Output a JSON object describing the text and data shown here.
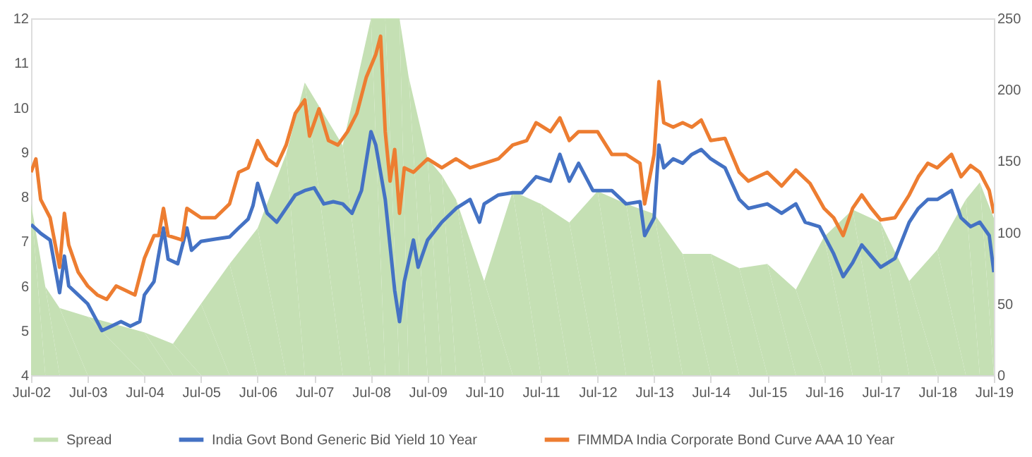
{
  "chart_data": {
    "type": "line",
    "series": [
      {
        "name": "Spread",
        "type": "area",
        "axis": "y2",
        "color": "#c5e0b4",
        "x": [
          "2002-07",
          "2002-10",
          "2003-01",
          "2003-07",
          "2004-07",
          "2005-01",
          "2005-07",
          "2006-01",
          "2006-07",
          "2007-01",
          "2007-05",
          "2008-01",
          "2008-07",
          "2008-10",
          "2009-01",
          "2009-03",
          "2009-07",
          "2009-10",
          "2010-01",
          "2010-07",
          "2011-01",
          "2011-07",
          "2012-01",
          "2012-07",
          "2013-01",
          "2013-07",
          "2014-01",
          "2014-07",
          "2015-01",
          "2015-07",
          "2016-01",
          "2016-07",
          "2017-01",
          "2017-07",
          "2018-01",
          "2018-07",
          "2019-01",
          "2019-04",
          "2019-07"
        ],
        "values": [
          120,
          62,
          47,
          41,
          30,
          22,
          50,
          78,
          103,
          155,
          205,
          161,
          250,
          250,
          250,
          209,
          152,
          140,
          123,
          66,
          129,
          120,
          107,
          129,
          120,
          113,
          85,
          85,
          75,
          78,
          60,
          97,
          116,
          107,
          66,
          88,
          123,
          135,
          110
        ]
      },
      {
        "name": "India Govt Bond Generic Bid Yield 10 Year",
        "color": "#4472c4",
        "x": [
          "2002-07",
          "2002-09",
          "2002-11",
          "2003-01",
          "2003-02",
          "2003-03",
          "2003-05",
          "2003-07",
          "2003-09",
          "2003-10",
          "2003-12",
          "2004-02",
          "2004-04",
          "2004-06",
          "2004-07",
          "2004-09",
          "2004-10",
          "2004-11",
          "2004-12",
          "2005-02",
          "2005-04",
          "2005-05",
          "2005-07",
          "2005-10",
          "2006-01",
          "2006-03",
          "2006-05",
          "2006-06",
          "2006-07",
          "2006-09",
          "2006-11",
          "2007-01",
          "2007-03",
          "2007-05",
          "2007-07",
          "2007-09",
          "2007-11",
          "2008-01",
          "2008-03",
          "2008-05",
          "2008-07",
          "2008-08",
          "2008-10",
          "2008-12",
          "2009-01",
          "2009-02",
          "2009-04",
          "2009-05",
          "2009-07",
          "2009-10",
          "2010-01",
          "2010-04",
          "2010-06",
          "2010-07",
          "2010-10",
          "2011-01",
          "2011-03",
          "2011-06",
          "2011-09",
          "2011-11",
          "2012-01",
          "2012-03",
          "2012-06",
          "2012-07",
          "2012-10",
          "2013-01",
          "2013-04",
          "2013-05",
          "2013-07",
          "2013-08",
          "2013-09",
          "2013-11",
          "2014-01",
          "2014-03",
          "2014-05",
          "2014-07",
          "2014-10",
          "2015-01",
          "2015-03",
          "2015-07",
          "2015-10",
          "2016-01",
          "2016-03",
          "2016-06",
          "2016-09",
          "2016-11",
          "2017-01",
          "2017-03",
          "2017-05",
          "2017-07",
          "2017-10",
          "2018-01",
          "2018-03",
          "2018-05",
          "2018-07",
          "2018-10",
          "2018-12",
          "2019-02",
          "2019-04",
          "2019-06",
          "2019-07"
        ],
        "values": [
          7.38,
          7.18,
          7.03,
          5.85,
          6.67,
          6.0,
          5.8,
          5.6,
          5.2,
          5.0,
          5.1,
          5.2,
          5.1,
          5.2,
          5.8,
          6.1,
          6.7,
          7.3,
          6.6,
          6.5,
          7.3,
          6.8,
          7.0,
          7.05,
          7.1,
          7.3,
          7.5,
          7.8,
          8.3,
          7.63,
          7.43,
          7.74,
          8.04,
          8.14,
          8.2,
          7.84,
          7.89,
          7.84,
          7.63,
          8.14,
          9.46,
          9.16,
          7.94,
          5.9,
          5.2,
          6.1,
          7.03,
          6.42,
          7.03,
          7.43,
          7.74,
          7.94,
          7.43,
          7.84,
          8.04,
          8.09,
          8.09,
          8.45,
          8.35,
          8.95,
          8.35,
          8.75,
          8.14,
          8.14,
          8.14,
          7.84,
          7.89,
          7.13,
          7.53,
          9.16,
          8.65,
          8.85,
          8.75,
          8.95,
          9.06,
          8.85,
          8.65,
          7.94,
          7.74,
          7.84,
          7.63,
          7.84,
          7.43,
          7.33,
          6.72,
          6.21,
          6.52,
          6.92,
          6.67,
          6.42,
          6.62,
          7.43,
          7.74,
          7.94,
          7.94,
          8.14,
          7.53,
          7.33,
          7.43,
          7.13,
          6.31
        ]
      },
      {
        "name": "FIMMDA India Corporate Bond Curve AAA 10 Year",
        "color": "#ed7d31",
        "x": [
          "2002-07",
          "2002-08",
          "2002-09",
          "2002-11",
          "2003-01",
          "2003-02",
          "2003-03",
          "2003-05",
          "2003-07",
          "2003-09",
          "2003-11",
          "2004-01",
          "2004-03",
          "2004-05",
          "2004-07",
          "2004-09",
          "2004-10",
          "2004-11",
          "2004-12",
          "2005-03",
          "2005-04",
          "2005-07",
          "2005-10",
          "2006-01",
          "2006-03",
          "2006-05",
          "2006-07",
          "2006-09",
          "2006-11",
          "2007-01",
          "2007-03",
          "2007-05",
          "2007-06",
          "2007-08",
          "2007-10",
          "2007-12",
          "2008-02",
          "2008-04",
          "2008-06",
          "2008-08",
          "2008-09",
          "2008-10",
          "2008-11",
          "2008-12",
          "2009-01",
          "2009-02",
          "2009-04",
          "2009-07",
          "2009-10",
          "2010-01",
          "2010-04",
          "2010-07",
          "2010-10",
          "2011-01",
          "2011-04",
          "2011-06",
          "2011-09",
          "2011-11",
          "2012-01",
          "2012-03",
          "2012-07",
          "2012-10",
          "2013-01",
          "2013-04",
          "2013-05",
          "2013-07",
          "2013-08",
          "2013-09",
          "2013-11",
          "2014-01",
          "2014-03",
          "2014-05",
          "2014-07",
          "2014-10",
          "2015-01",
          "2015-03",
          "2015-07",
          "2015-10",
          "2016-01",
          "2016-04",
          "2016-07",
          "2016-09",
          "2016-11",
          "2017-01",
          "2017-03",
          "2017-05",
          "2017-07",
          "2017-10",
          "2018-01",
          "2018-03",
          "2018-05",
          "2018-07",
          "2018-10",
          "2018-12",
          "2019-02",
          "2019-04",
          "2019-06",
          "2019-07"
        ],
        "values": [
          8.55,
          8.85,
          7.94,
          7.53,
          6.42,
          7.63,
          6.92,
          6.31,
          6.0,
          5.8,
          5.7,
          6.0,
          5.9,
          5.8,
          6.62,
          7.13,
          7.13,
          7.74,
          7.13,
          7.03,
          7.74,
          7.53,
          7.53,
          7.84,
          8.55,
          8.65,
          9.26,
          8.85,
          8.7,
          9.16,
          9.87,
          10.17,
          9.36,
          9.97,
          9.26,
          9.16,
          9.46,
          9.87,
          10.68,
          11.19,
          11.6,
          9.46,
          8.35,
          9.06,
          7.63,
          8.65,
          8.55,
          8.85,
          8.65,
          8.85,
          8.65,
          8.75,
          8.85,
          9.16,
          9.26,
          9.66,
          9.46,
          9.77,
          9.26,
          9.46,
          9.46,
          8.95,
          8.95,
          8.75,
          7.84,
          8.95,
          10.58,
          9.66,
          9.56,
          9.66,
          9.56,
          9.72,
          9.26,
          9.31,
          8.55,
          8.35,
          8.55,
          8.24,
          8.6,
          8.3,
          7.74,
          7.53,
          7.13,
          7.74,
          8.04,
          7.74,
          7.48,
          7.53,
          8.04,
          8.45,
          8.75,
          8.65,
          8.95,
          8.45,
          8.7,
          8.55,
          8.14,
          7.63
        ]
      }
    ],
    "xlim": [
      "2002-07",
      "2019-07"
    ],
    "xticks": [
      {
        "value": "2002-07",
        "label": "Jul-02"
      },
      {
        "value": "2003-07",
        "label": "Jul-03"
      },
      {
        "value": "2004-07",
        "label": "Jul-04"
      },
      {
        "value": "2005-07",
        "label": "Jul-05"
      },
      {
        "value": "2006-07",
        "label": "Jul-06"
      },
      {
        "value": "2007-07",
        "label": "Jul-07"
      },
      {
        "value": "2008-07",
        "label": "Jul-08"
      },
      {
        "value": "2009-07",
        "label": "Jul-09"
      },
      {
        "value": "2010-07",
        "label": "Jul-10"
      },
      {
        "value": "2011-07",
        "label": "Jul-11"
      },
      {
        "value": "2012-07",
        "label": "Jul-12"
      },
      {
        "value": "2013-07",
        "label": "Jul-13"
      },
      {
        "value": "2014-07",
        "label": "Jul-14"
      },
      {
        "value": "2015-07",
        "label": "Jul-15"
      },
      {
        "value": "2016-07",
        "label": "Jul-16"
      },
      {
        "value": "2017-07",
        "label": "Jul-17"
      },
      {
        "value": "2018-07",
        "label": "Jul-18"
      },
      {
        "value": "2019-07",
        "label": "Jul-19"
      }
    ],
    "ylim": [
      4,
      12
    ],
    "yticks": [
      4,
      5,
      6,
      7,
      8,
      9,
      10,
      11,
      12
    ],
    "y2lim": [
      0,
      250
    ],
    "y2ticks": [
      0,
      50,
      100,
      150,
      200,
      250
    ],
    "grid": false,
    "legend": "bottom"
  }
}
